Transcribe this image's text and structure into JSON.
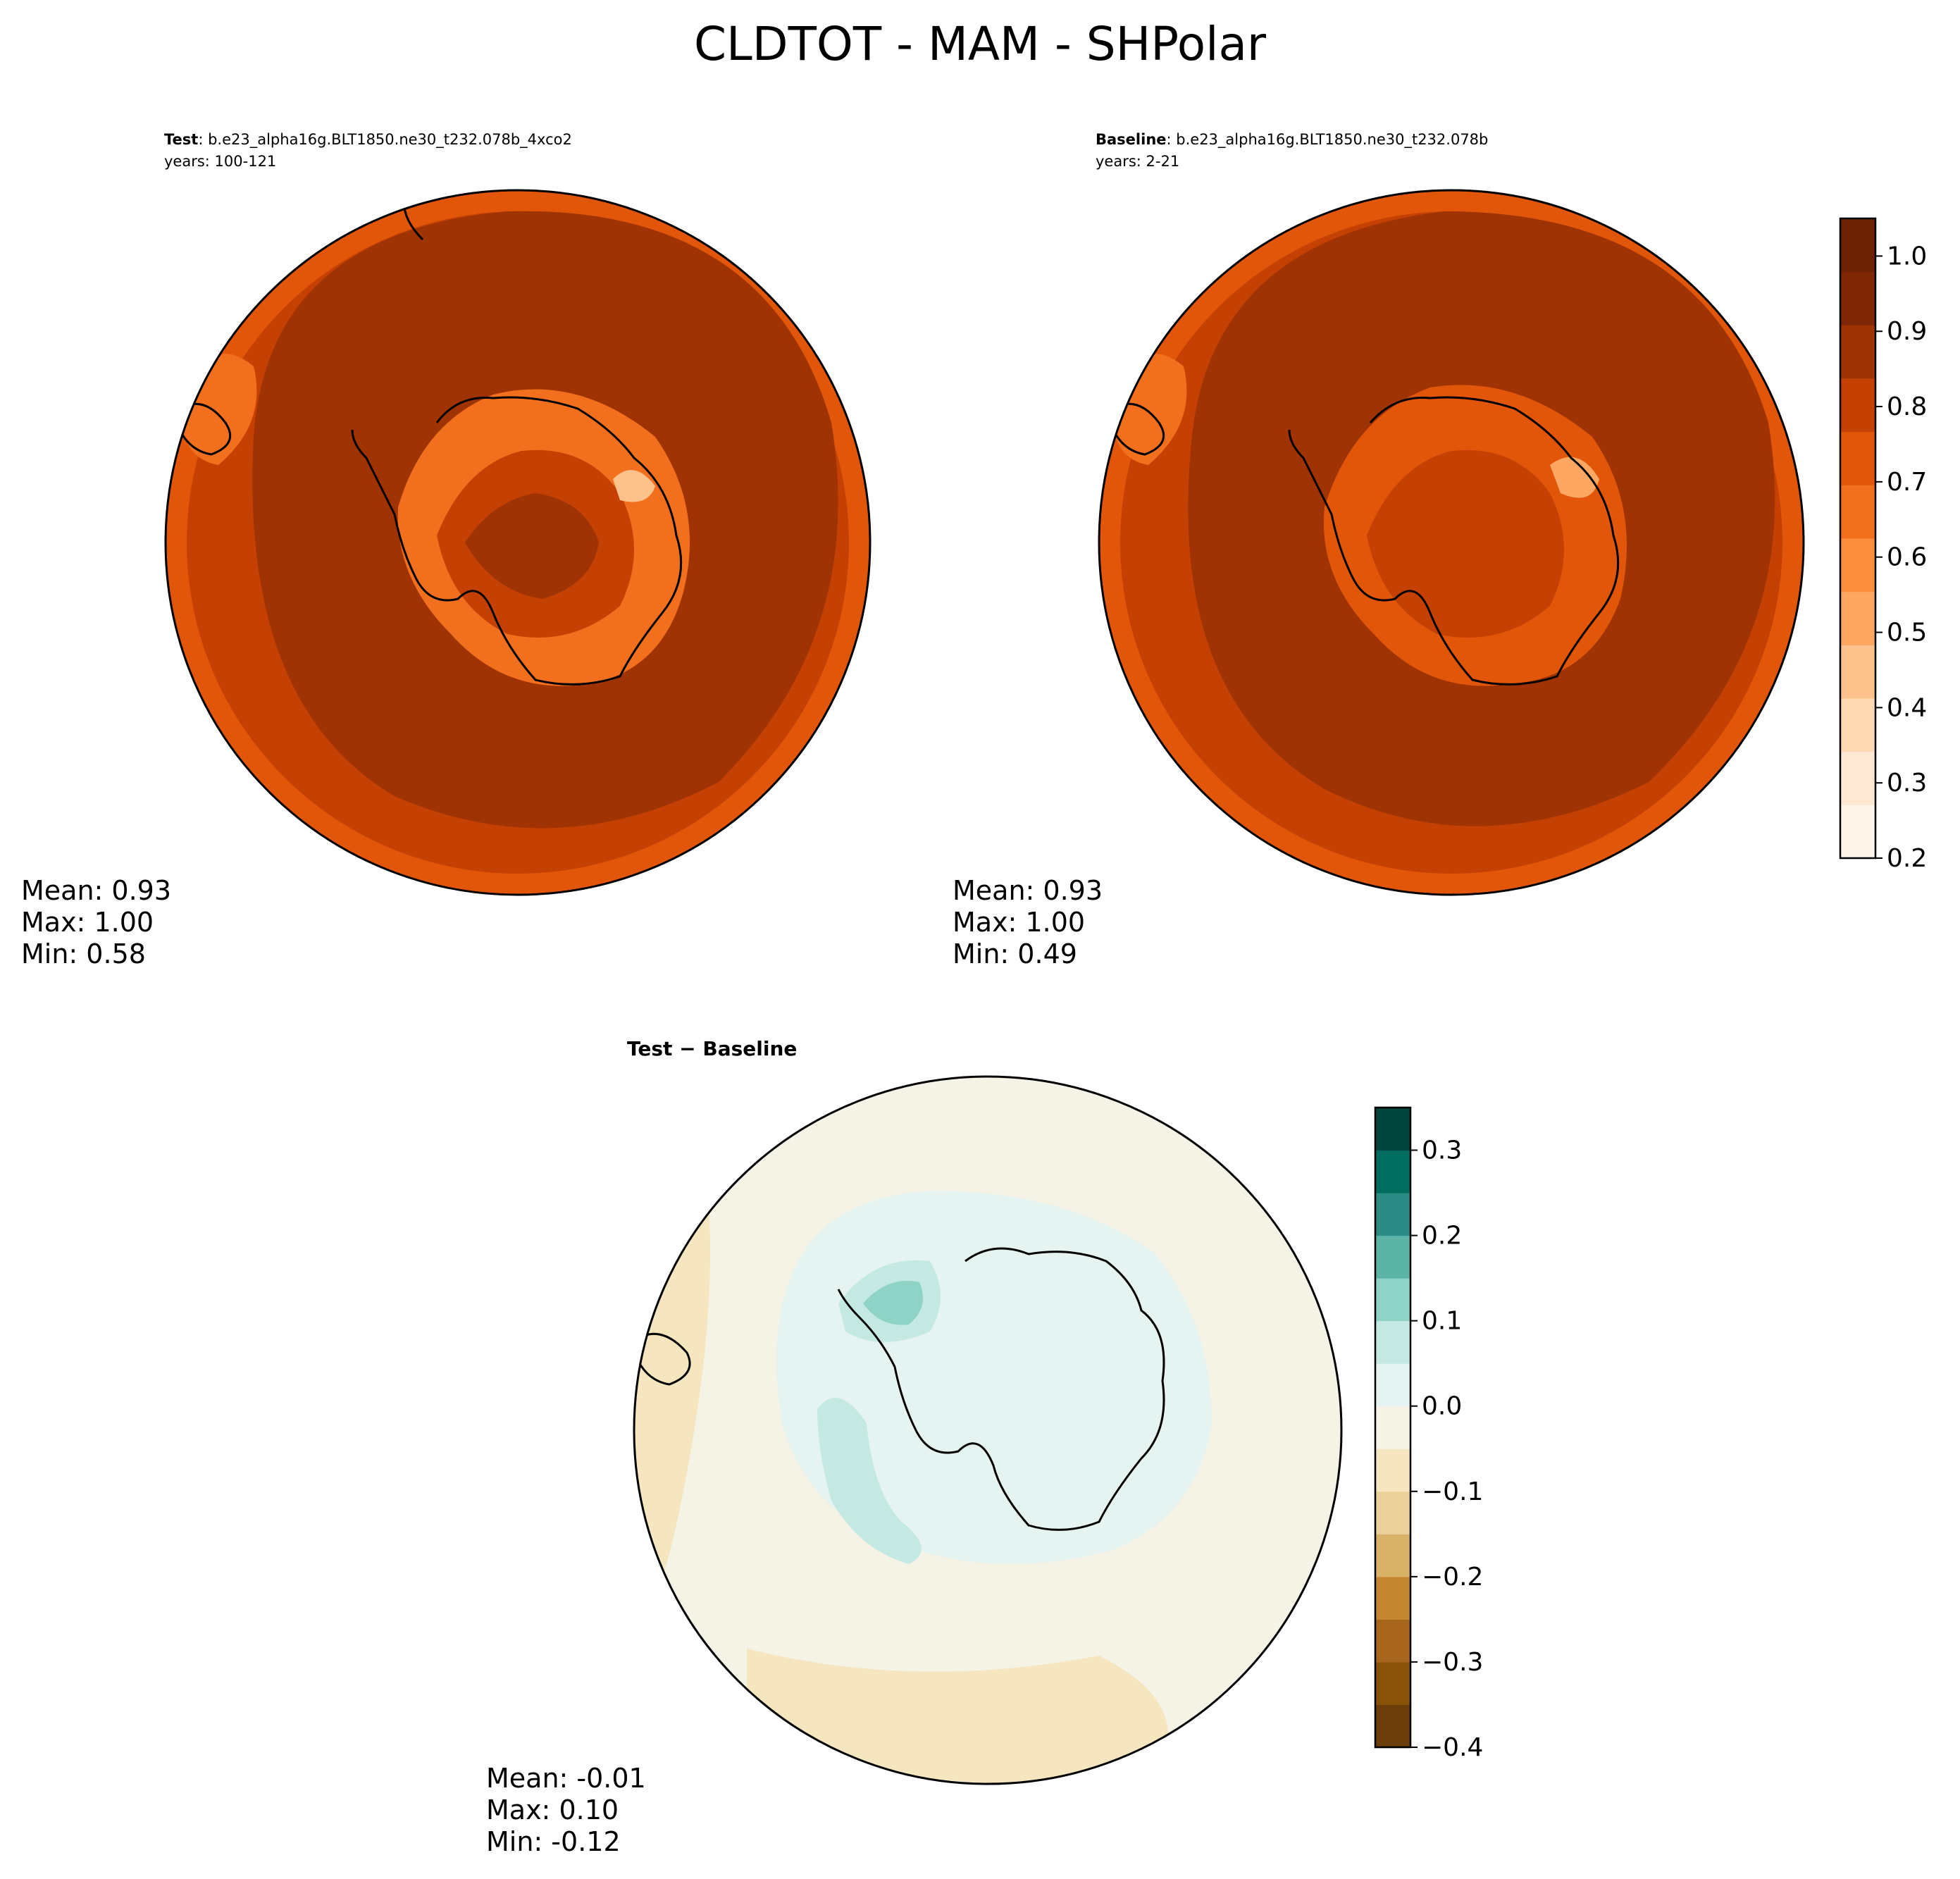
{
  "figure": {
    "title": "CLDTOT - MAM - SHPolar"
  },
  "chart_data": [
    {
      "type": "heatmap",
      "projection": "south-polar-stereographic",
      "panel": "test",
      "header_label": "Test",
      "header_text": ": b.e23_alpha16g.BLT1850.ne30_t232.078b_4xco2",
      "years_text": "years: 100-121",
      "stats": {
        "mean": "Mean:  0.93",
        "max": "Max:  1.00",
        "min": "Min:  0.58"
      },
      "values": {
        "mean": 0.93,
        "max": 1.0,
        "min": 0.58
      }
    },
    {
      "type": "heatmap",
      "projection": "south-polar-stereographic",
      "panel": "baseline",
      "header_label": "Baseline",
      "header_text": ": b.e23_alpha16g.BLT1850.ne30_t232.078b",
      "years_text": "years: 2-21",
      "stats": {
        "mean": "Mean:  0.93",
        "max": "Max:  1.00",
        "min": "Min:  0.49"
      },
      "values": {
        "mean": 0.93,
        "max": 1.0,
        "min": 0.49
      },
      "colorbar": {
        "min": 0.2,
        "max": 1.05,
        "ticks": [
          0.2,
          0.3,
          0.4,
          0.5,
          0.6,
          0.7,
          0.8,
          0.9,
          1.0
        ],
        "tick_labels": [
          "0.2",
          "0.3",
          "0.4",
          "0.5",
          "0.6",
          "0.7",
          "0.8",
          "0.9",
          "1.0"
        ],
        "colors": [
          "#fff5eb",
          "#fee8d3",
          "#fdd9b4",
          "#fdc28c",
          "#fda762",
          "#fb8d3d",
          "#f2701d",
          "#e25609",
          "#c44103",
          "#9f3303",
          "#7f2704",
          "#6e2204"
        ]
      }
    },
    {
      "type": "heatmap",
      "projection": "south-polar-stereographic",
      "panel": "difference",
      "title": "Test − Baseline",
      "stats": {
        "mean": "Mean: -0.01",
        "max": "Max:  0.10",
        "min": "Min: -0.12"
      },
      "values": {
        "mean": -0.01,
        "max": 0.1,
        "min": -0.12
      },
      "colorbar": {
        "min": -0.4,
        "max": 0.35,
        "ticks": [
          -0.4,
          -0.3,
          -0.2,
          -0.1,
          0.0,
          0.1,
          0.2,
          0.3
        ],
        "tick_labels": [
          "−0.4",
          "−0.3",
          "−0.2",
          "−0.1",
          "0.0",
          "0.1",
          "0.2",
          "0.3"
        ],
        "colors": [
          "#6a3d0a",
          "#8a510b",
          "#a8651e",
          "#c3872f",
          "#d9b26a",
          "#ead19a",
          "#f5e6c0",
          "#f5f2e6",
          "#e6f4f1",
          "#c4e9e3",
          "#8fd3c6",
          "#5bb3a6",
          "#2a8c84",
          "#016c60",
          "#01463e"
        ]
      }
    }
  ]
}
